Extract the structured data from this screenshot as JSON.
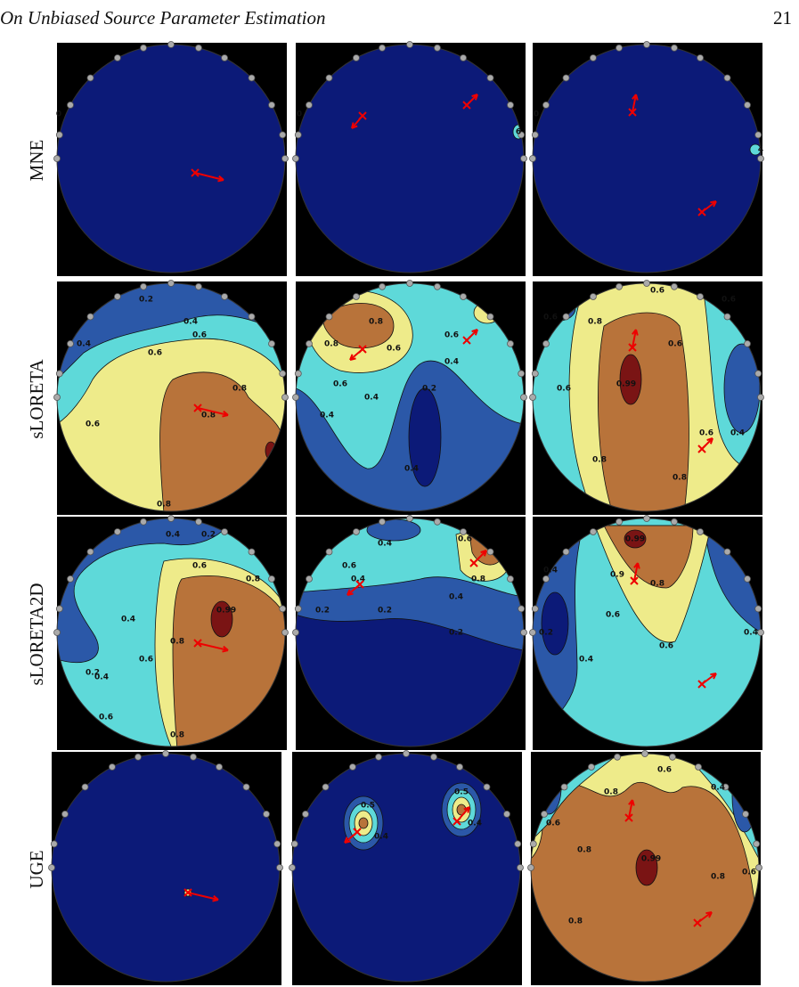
{
  "header": {
    "title": "On Unbiased Source Parameter Estimation",
    "page_number": "21"
  },
  "figure": {
    "rows": [
      {
        "label": "MNE",
        "panels": [
          {
            "contour_labels": [
              "0"
            ]
          },
          {
            "contour_labels": [
              "0",
              "6"
            ]
          },
          {
            "contour_labels": [
              "0",
              "4"
            ]
          }
        ]
      },
      {
        "label": "sLORETA",
        "panels": [
          {
            "contour_labels": [
              "0.2",
              "0.4",
              "0.6",
              "0.8",
              "0.8",
              "0.6",
              "0.4",
              "0.6",
              "0.8"
            ]
          },
          {
            "contour_labels": [
              "0.8",
              "0.8",
              "0.6",
              "0.6",
              "0.4",
              "0.6",
              "0.4",
              "0.2",
              "0.4",
              "0.4"
            ]
          },
          {
            "contour_labels": [
              "0.6",
              "0.8",
              "0.6",
              "0.6",
              "0.6",
              "0.99",
              "0.6",
              "0.4",
              "0.8",
              "0.6",
              "0.8"
            ]
          }
        ]
      },
      {
        "label": "sLORETA2D",
        "panels": [
          {
            "contour_labels": [
              "0.4",
              "0.2",
              "0.6",
              "0.8",
              "0.99",
              "0.8",
              "0.4",
              "0.2",
              "0.6",
              "0.4",
              "0.6",
              "0.8"
            ]
          },
          {
            "contour_labels": [
              "0.4",
              "0.6",
              "0.4",
              "0.6",
              "0.8",
              "0.4",
              "0.2",
              "0.2",
              "0.2"
            ]
          },
          {
            "contour_labels": [
              "0.99",
              "0.9",
              "0.8",
              "0.6",
              "0.6",
              "0.4",
              "0.2",
              "0.4",
              "0.4"
            ]
          }
        ]
      },
      {
        "label": "UGE",
        "panels": [
          {
            "contour_labels": []
          },
          {
            "contour_labels": [
              "0.5",
              "0.4",
              "0.5",
              "0.4"
            ]
          },
          {
            "contour_labels": [
              "0.8",
              "0.6",
              "0.4",
              "0.6",
              "0.8",
              "0.99",
              "0.8",
              "0.6",
              "0.8"
            ]
          }
        ]
      }
    ]
  }
}
